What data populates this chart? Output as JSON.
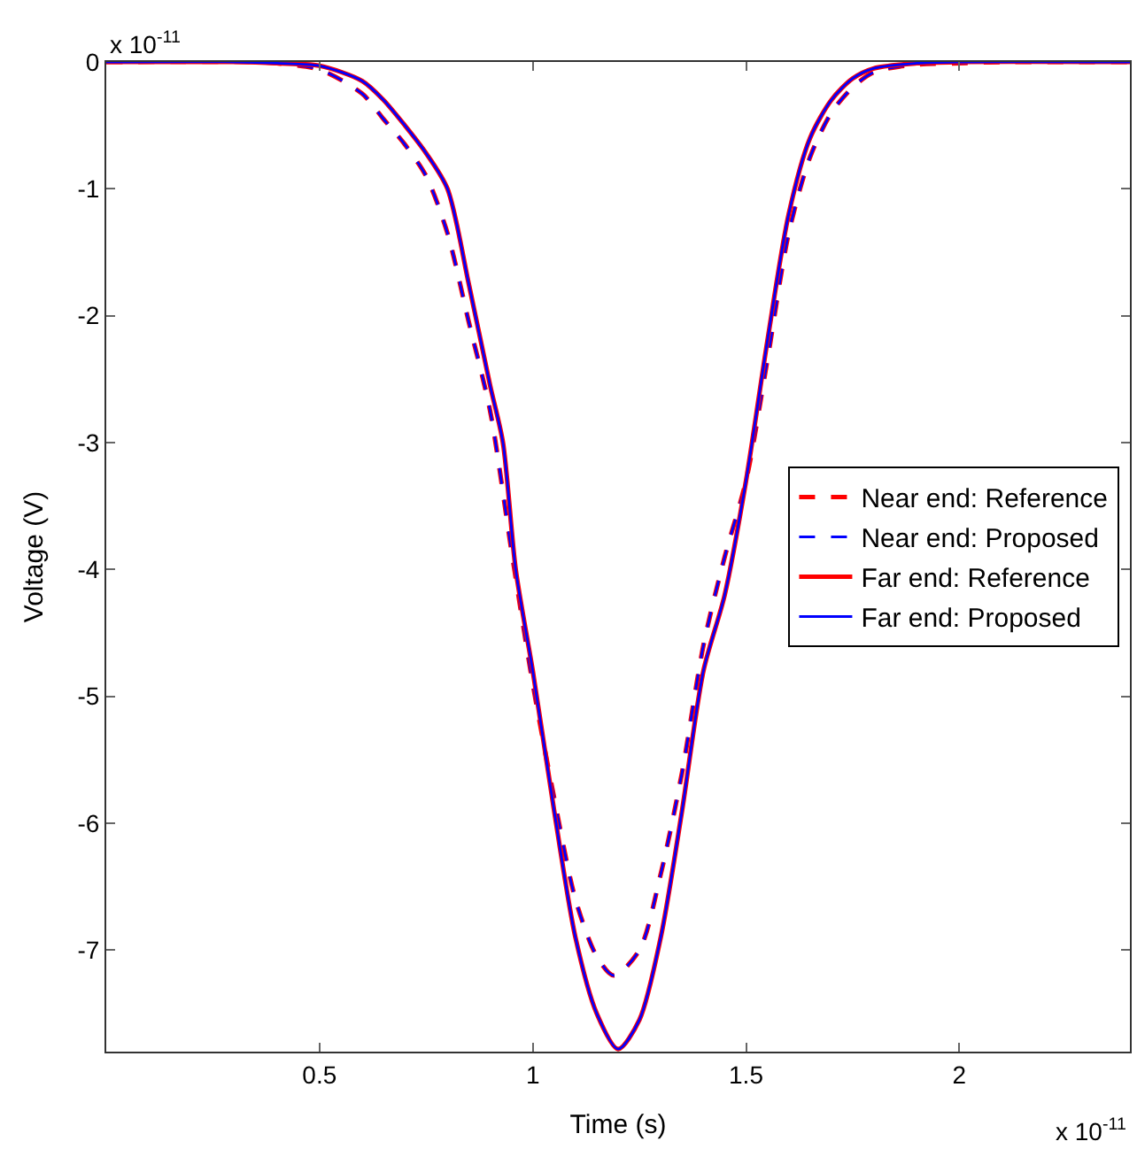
{
  "chart_data": {
    "type": "line",
    "xlabel": "Time (s)",
    "ylabel": "Voltage (V)",
    "annotations": [
      "x 10$^{-11}$",
      "x 10$^{-11}$"
    ],
    "xlim": [
      0,
      2.4
    ],
    "xticks": [
      0.5,
      1,
      1.5,
      2
    ],
    "ylim": [
      -7.8,
      0
    ],
    "yticks": [
      0,
      -1,
      -2,
      -3,
      -4,
      -5,
      -6,
      -7
    ],
    "legend": "right",
    "marker": "none",
    "series": [
      {
        "name": "Near end: Reference",
        "color": "#ff0000",
        "line_style": "dashed",
        "x": [
          0,
          0.35,
          0.4,
          0.5,
          0.6,
          0.65,
          0.7,
          0.75,
          0.8,
          0.85,
          0.9,
          0.95,
          1.0,
          1.05,
          1.1,
          1.15,
          1.19,
          1.25,
          1.3,
          1.35,
          1.4,
          1.45,
          1.5,
          1.55,
          1.6,
          1.65,
          1.7,
          1.75,
          1.8,
          1.9,
          2.0,
          2.1,
          2.4
        ],
        "values": [
          0,
          0,
          -0.01,
          -0.06,
          -0.25,
          -0.45,
          -0.65,
          -0.9,
          -1.35,
          -2.05,
          -2.75,
          -3.85,
          -4.9,
          -5.8,
          -6.6,
          -7.05,
          -7.2,
          -7.0,
          -6.4,
          -5.6,
          -4.6,
          -3.9,
          -3.3,
          -2.35,
          -1.35,
          -0.75,
          -0.4,
          -0.2,
          -0.08,
          -0.02,
          -0.01,
          0,
          0
        ]
      },
      {
        "name": "Near end: Proposed",
        "color": "#0000ff",
        "line_style": "dashed",
        "x": [
          0,
          0.35,
          0.4,
          0.5,
          0.6,
          0.65,
          0.7,
          0.75,
          0.8,
          0.85,
          0.9,
          0.95,
          1.0,
          1.05,
          1.1,
          1.15,
          1.19,
          1.25,
          1.3,
          1.35,
          1.4,
          1.45,
          1.5,
          1.55,
          1.6,
          1.65,
          1.7,
          1.75,
          1.8,
          1.9,
          2.0,
          2.1,
          2.4
        ],
        "values": [
          0,
          0,
          -0.01,
          -0.06,
          -0.25,
          -0.45,
          -0.65,
          -0.9,
          -1.35,
          -2.05,
          -2.75,
          -3.85,
          -4.9,
          -5.8,
          -6.6,
          -7.05,
          -7.2,
          -7.0,
          -6.4,
          -5.6,
          -4.6,
          -3.9,
          -3.3,
          -2.35,
          -1.35,
          -0.75,
          -0.4,
          -0.2,
          -0.08,
          -0.02,
          -0.01,
          0,
          0
        ]
      },
      {
        "name": "Far end: Reference",
        "color": "#ff0000",
        "line_style": "solid",
        "x": [
          0,
          0.3,
          0.4,
          0.5,
          0.6,
          0.65,
          0.7,
          0.75,
          0.8,
          0.85,
          0.9,
          0.93,
          0.96,
          1.0,
          1.05,
          1.1,
          1.15,
          1.2,
          1.25,
          1.3,
          1.35,
          1.4,
          1.45,
          1.5,
          1.55,
          1.6,
          1.65,
          1.7,
          1.75,
          1.8,
          1.9,
          2.0,
          2.4
        ],
        "values": [
          0,
          0,
          -0.01,
          -0.03,
          -0.15,
          -0.3,
          -0.5,
          -0.72,
          -1.0,
          -1.75,
          -2.55,
          -3.0,
          -4.0,
          -4.8,
          -5.9,
          -6.9,
          -7.5,
          -7.78,
          -7.55,
          -6.9,
          -5.9,
          -4.8,
          -4.2,
          -3.3,
          -2.2,
          -1.2,
          -0.6,
          -0.3,
          -0.13,
          -0.05,
          -0.01,
          0,
          0
        ]
      },
      {
        "name": "Far end: Proposed",
        "color": "#0000ff",
        "line_style": "solid",
        "x": [
          0,
          0.3,
          0.4,
          0.5,
          0.6,
          0.65,
          0.7,
          0.75,
          0.8,
          0.85,
          0.9,
          0.93,
          0.96,
          1.0,
          1.05,
          1.1,
          1.15,
          1.2,
          1.25,
          1.3,
          1.35,
          1.4,
          1.45,
          1.5,
          1.55,
          1.6,
          1.65,
          1.7,
          1.75,
          1.8,
          1.9,
          2.0,
          2.4
        ],
        "values": [
          0,
          0,
          -0.01,
          -0.03,
          -0.15,
          -0.3,
          -0.5,
          -0.72,
          -1.0,
          -1.75,
          -2.55,
          -3.0,
          -4.0,
          -4.8,
          -5.9,
          -6.9,
          -7.5,
          -7.78,
          -7.55,
          -6.9,
          -5.9,
          -4.8,
          -4.2,
          -3.3,
          -2.2,
          -1.2,
          -0.6,
          -0.3,
          -0.13,
          -0.05,
          -0.01,
          0,
          0
        ]
      }
    ]
  }
}
